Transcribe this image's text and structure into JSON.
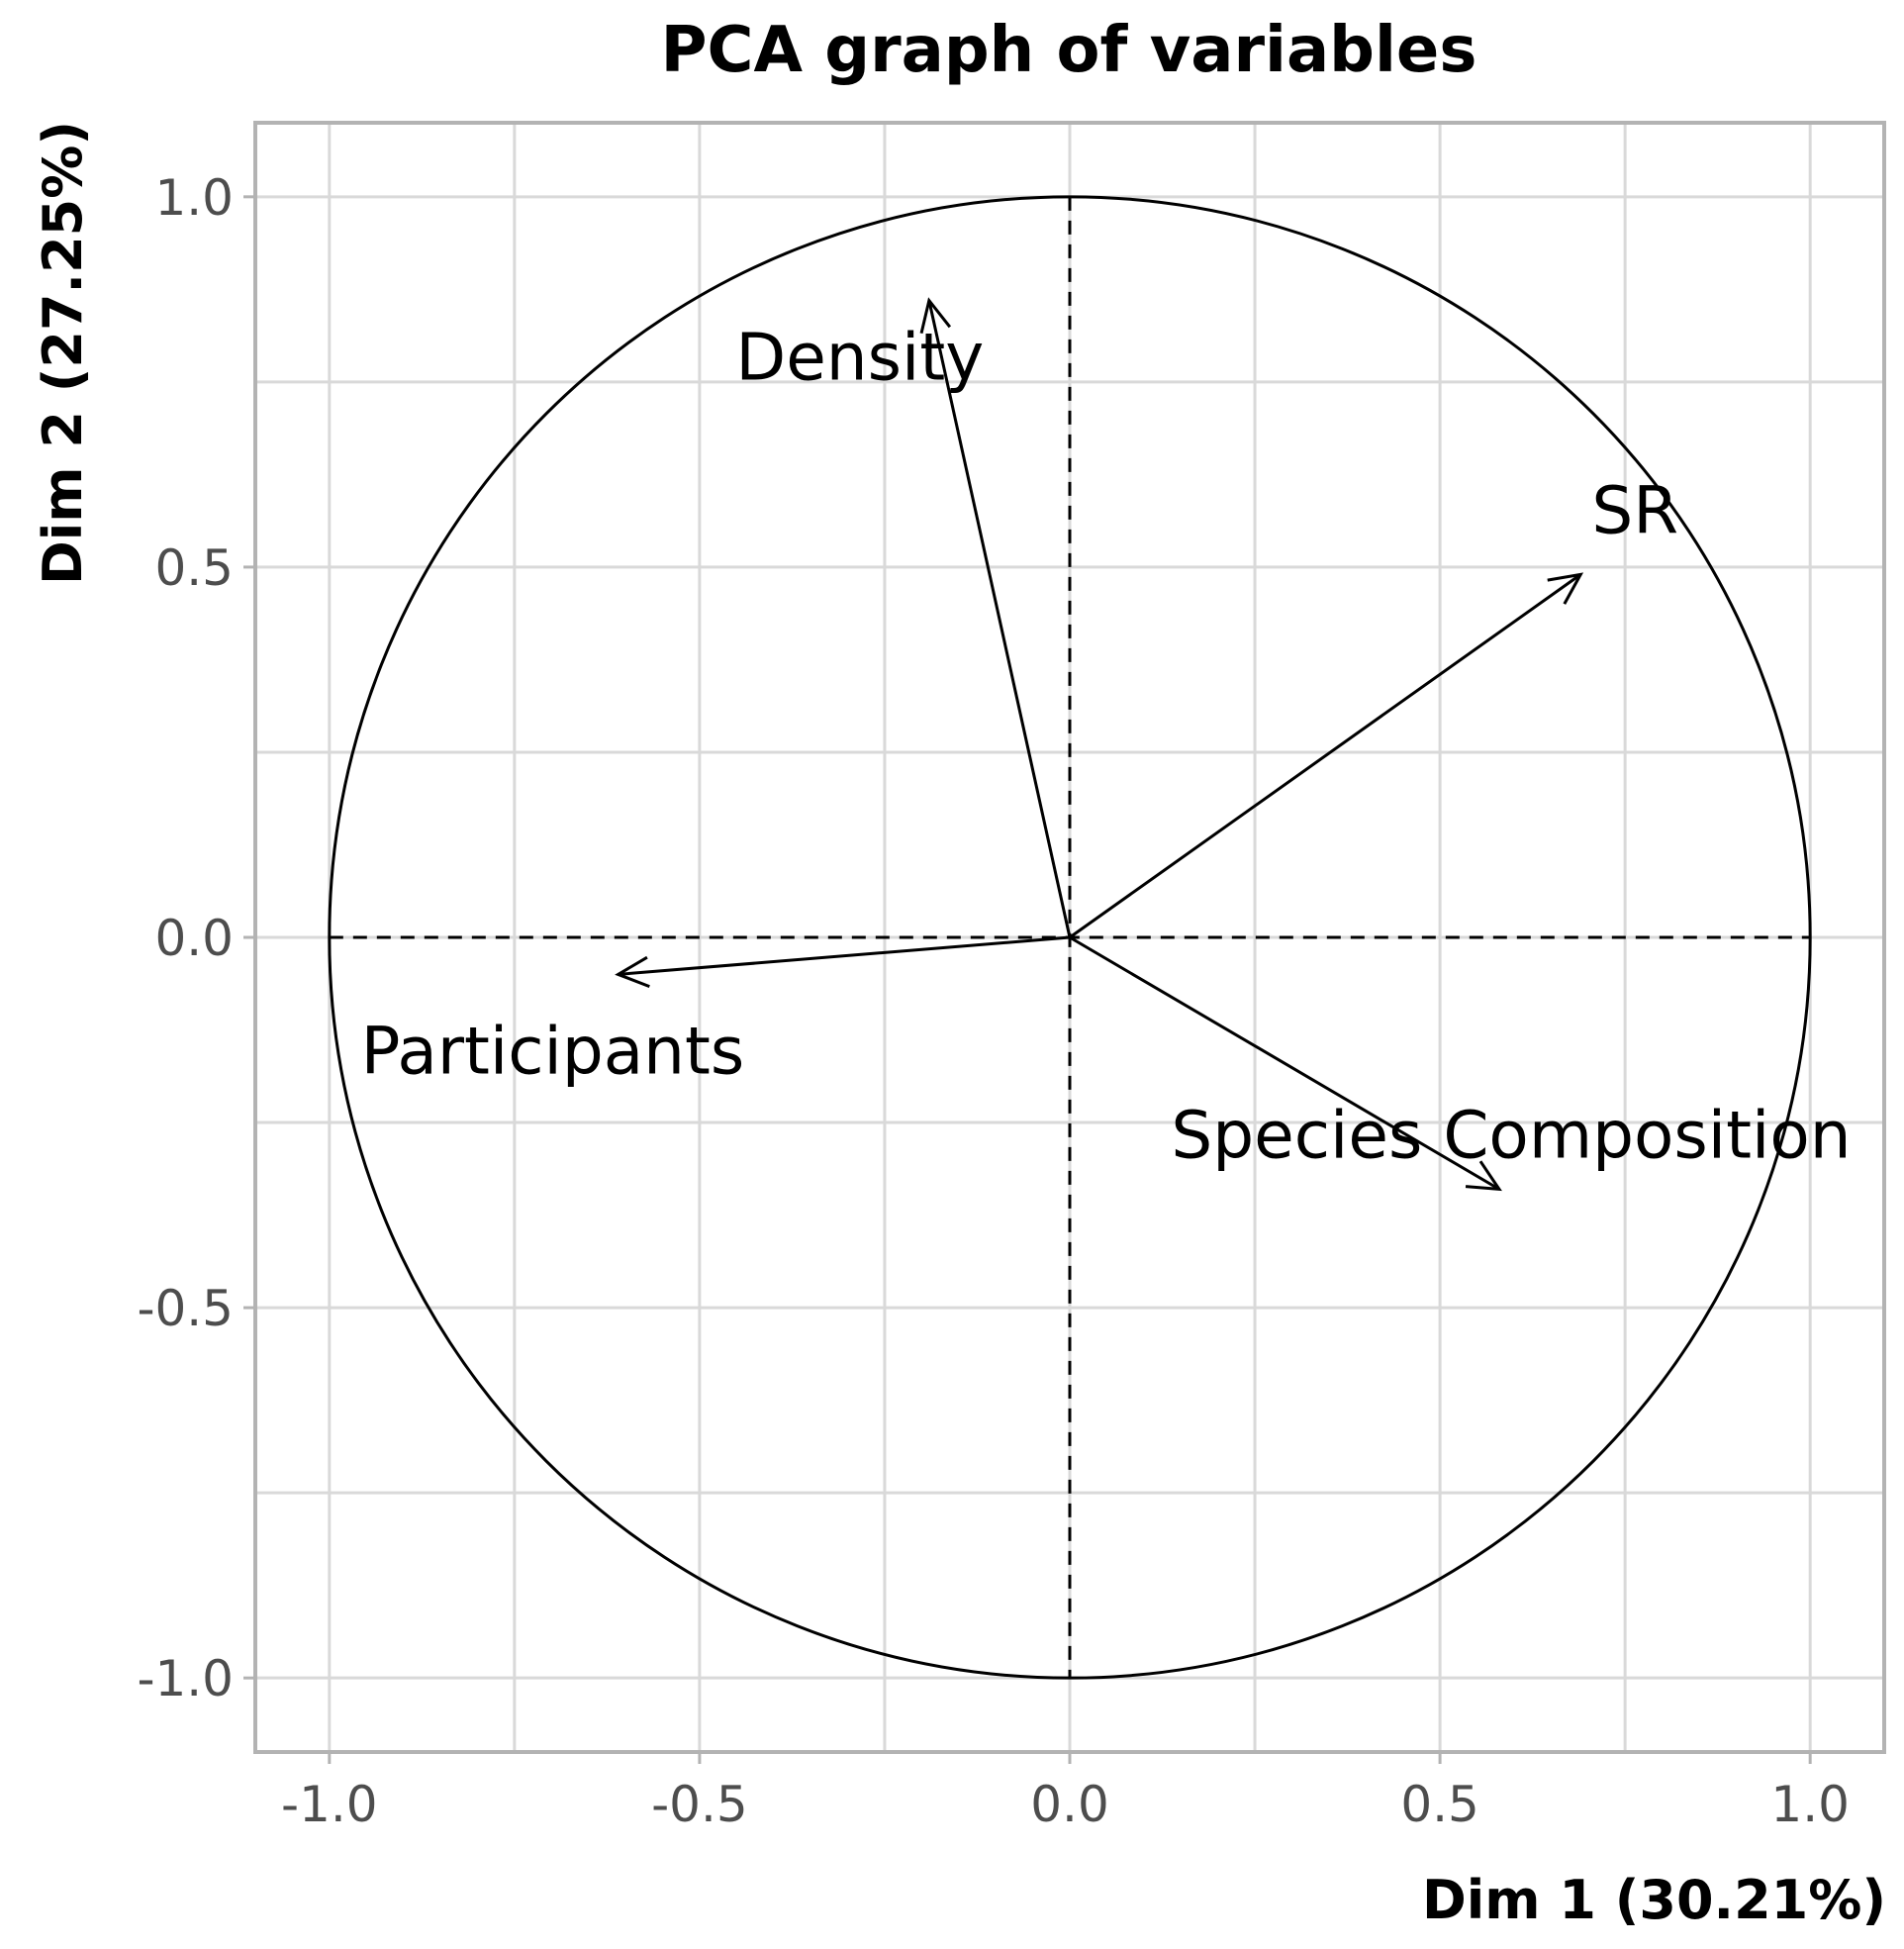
{
  "chart_data": {
    "type": "scatter",
    "subtype": "pca-variable-correlation-circle",
    "title": "PCA graph of variables",
    "xlabel": "Dim 1 (30.21%)",
    "ylabel": "Dim 2 (27.25%)",
    "xlim": [
      -1.1,
      1.1
    ],
    "ylim": [
      -1.1,
      1.1
    ],
    "x_ticks": [
      -1.0,
      -0.5,
      0.0,
      0.5,
      1.0
    ],
    "x_tick_labels": [
      "-1.0",
      "-0.5",
      "0.0",
      "0.5",
      "1.0"
    ],
    "y_ticks": [
      -1.0,
      -0.5,
      0.0,
      0.5,
      1.0
    ],
    "y_tick_labels": [
      "-1.0",
      "-0.5",
      "0.0",
      "0.5",
      "1.0"
    ],
    "grid": true,
    "unit_circle": true,
    "variables": [
      {
        "name": "Density",
        "x": -0.19,
        "y": 0.86
      },
      {
        "name": "SR",
        "x": 0.69,
        "y": 0.49
      },
      {
        "name": "Participants",
        "x": -0.61,
        "y": -0.05
      },
      {
        "name": "Species Composition",
        "x": 0.58,
        "y": -0.34
      }
    ]
  }
}
